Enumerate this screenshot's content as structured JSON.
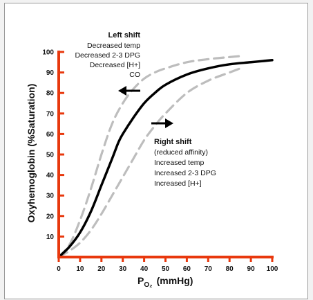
{
  "chart_data": {
    "type": "line",
    "title": "",
    "xlabel": {
      "main": "P",
      "subscript": "O₂",
      "unit": "(mmHg)"
    },
    "ylabel": "Oxyhemoglobin (%Saturation)",
    "xlim": [
      0,
      100
    ],
    "ylim": [
      0,
      100
    ],
    "xticks": [
      "0",
      "10",
      "20",
      "30",
      "40",
      "50",
      "60",
      "70",
      "80",
      "90",
      "100"
    ],
    "yticks": [
      "10",
      "20",
      "30",
      "40",
      "50",
      "60",
      "70",
      "80",
      "90",
      "100"
    ],
    "grid": false,
    "series": [
      {
        "style": "solid",
        "color": "#000000",
        "x": [
          0,
          5,
          10,
          15,
          20,
          25,
          28,
          30,
          35,
          40,
          45,
          50,
          60,
          70,
          80,
          90,
          100
        ],
        "y": [
          0,
          5,
          12,
          22,
          35,
          48,
          56,
          60,
          68,
          75,
          80,
          84,
          89,
          92,
          94,
          95,
          96
        ]
      },
      {
        "style": "dashed",
        "color": "#bdbdbd",
        "x": [
          0,
          5,
          10,
          15,
          20,
          25,
          30,
          35,
          40,
          45,
          50,
          60,
          70,
          80,
          85
        ],
        "y": [
          0,
          6,
          18,
          33,
          50,
          65,
          75,
          82,
          87,
          90,
          92,
          95,
          96.5,
          97.5,
          98
        ]
      },
      {
        "style": "dashed",
        "color": "#bdbdbd",
        "x": [
          0,
          5,
          10,
          15,
          20,
          25,
          30,
          35,
          40,
          45,
          50,
          60,
          70,
          80,
          85
        ],
        "y": [
          0,
          3,
          7,
          13,
          21,
          30,
          39,
          48,
          57,
          64,
          70,
          80,
          86,
          90,
          92
        ]
      }
    ],
    "annotations": {
      "left_shift": {
        "title": "Left shift",
        "lines": [
          "Decreased temp",
          "Decreased 2-3 DPG",
          "Decreased [H+]",
          "CO"
        ]
      },
      "right_shift": {
        "title": "Right shift",
        "lines": [
          "(reduced affinity)",
          "Increased temp",
          "Increased 2-3 DPG",
          "Increased [H+]"
        ]
      }
    },
    "colors": {
      "axis": "#e8380d",
      "main_curve": "#000000",
      "shift_curves": "#bdbdbd"
    }
  }
}
